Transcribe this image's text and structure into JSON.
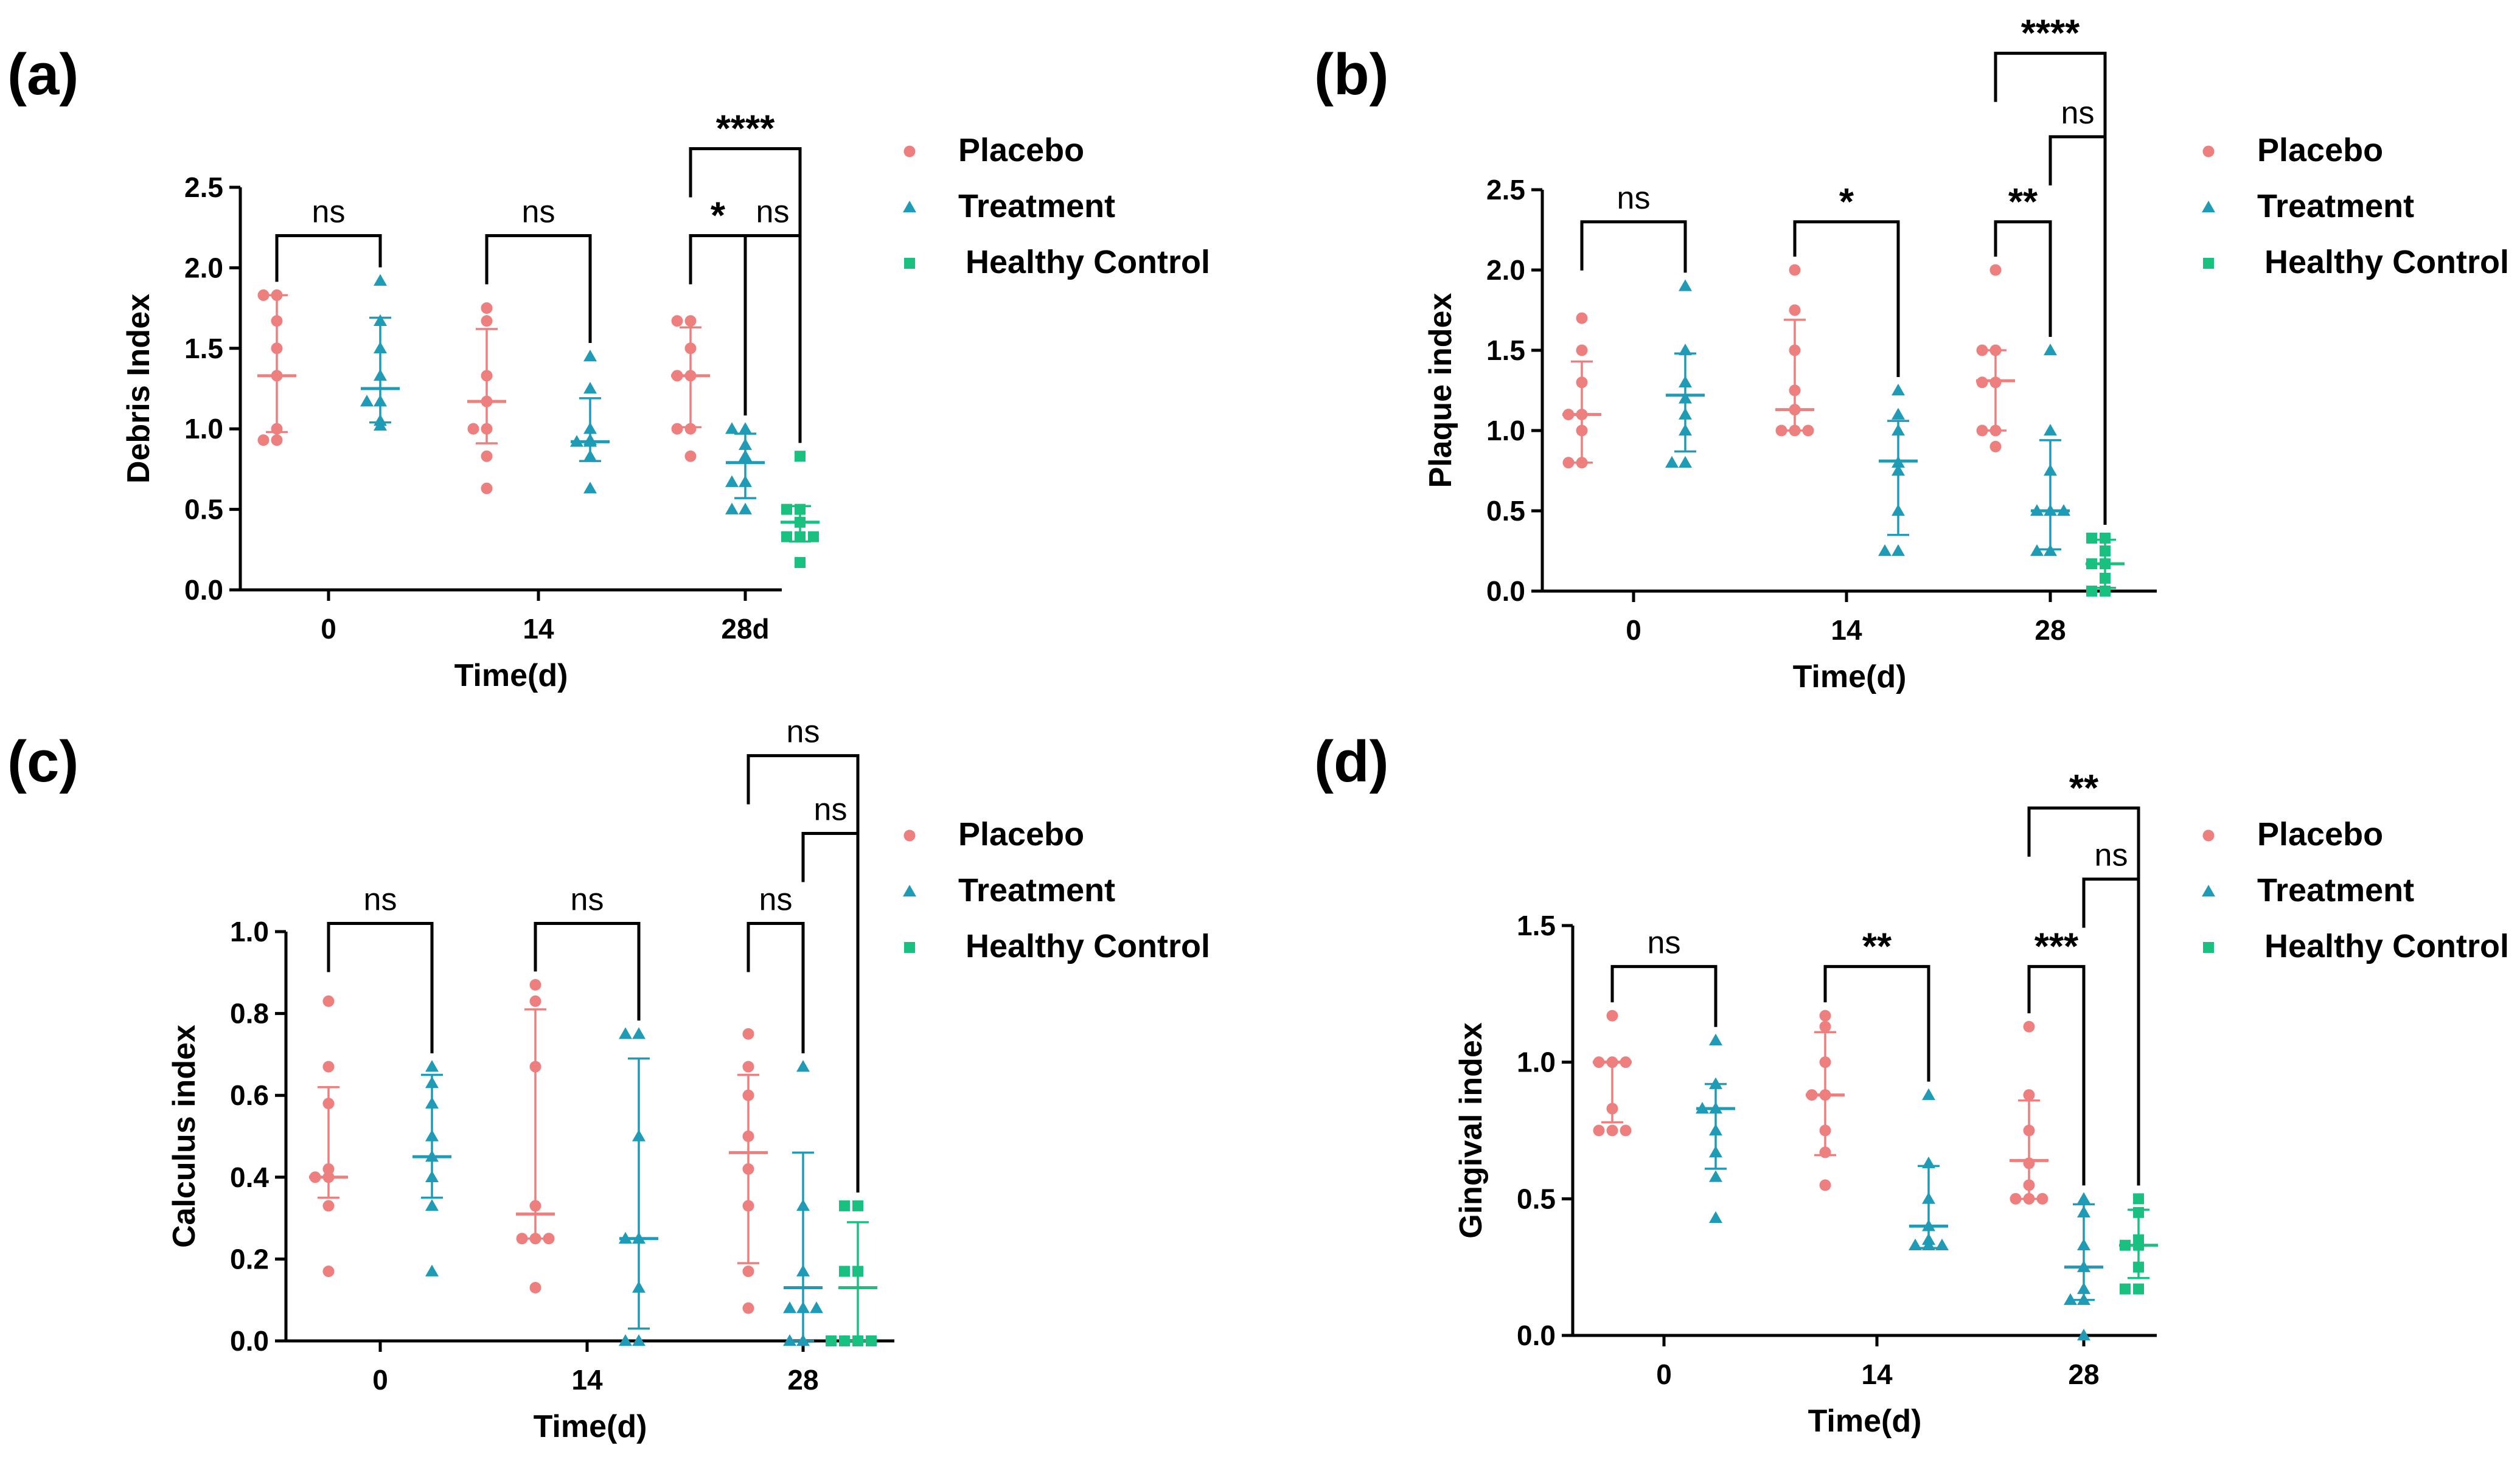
{
  "colors": {
    "Placebo": "#ee7f7f",
    "Treatment": "#1f9bb6",
    "Healthy Control": "#19c07f",
    "axis": "#000000"
  },
  "chart_data": [
    {
      "type": "scatter",
      "panel": "(a)",
      "ylabel": "Debris Index",
      "xlabel": "Time(d)",
      "ylim": [
        0,
        2.5
      ],
      "yticks": [
        "0.0",
        "0.5",
        "1.0",
        "1.5",
        "2.0",
        "2.5"
      ],
      "categories": [
        "0",
        "14",
        "28d"
      ],
      "legend": [
        "Placebo",
        "Treatment",
        "Healthy Control"
      ],
      "groups": [
        {
          "time": "0",
          "series": "Placebo",
          "points": [
            1.83,
            1.83,
            1.67,
            1.5,
            1.33,
            1.0,
            0.93,
            0.93
          ],
          "mean": 1.33,
          "err": [
            0.98,
            1.83
          ]
        },
        {
          "time": "0",
          "series": "Treatment",
          "points": [
            1.92,
            1.67,
            1.5,
            1.33,
            1.17,
            1.17,
            1.05,
            1.02
          ],
          "mean": 1.25,
          "err": [
            1.04,
            1.69
          ]
        },
        {
          "time": "14",
          "series": "Placebo",
          "points": [
            1.75,
            1.67,
            1.33,
            1.17,
            1.0,
            1.0,
            0.83,
            0.63
          ],
          "mean": 1.17,
          "err": [
            0.91,
            1.62
          ]
        },
        {
          "time": "14",
          "series": "Treatment",
          "points": [
            1.45,
            1.25,
            1.0,
            0.93,
            0.92,
            0.92,
            0.83,
            0.63
          ],
          "mean": 0.92,
          "err": [
            0.8,
            1.19
          ]
        },
        {
          "time": "28d",
          "series": "Placebo",
          "points": [
            1.67,
            1.67,
            1.5,
            1.33,
            1.33,
            1.0,
            1.0,
            0.83
          ],
          "mean": 1.33,
          "err": [
            1.01,
            1.63
          ]
        },
        {
          "time": "28d",
          "series": "Treatment",
          "points": [
            1.0,
            1.0,
            0.9,
            0.83,
            0.67,
            0.67,
            0.5,
            0.5
          ],
          "mean": 0.79,
          "err": [
            0.57,
            0.97
          ]
        },
        {
          "time": "28d",
          "series": "Healthy Control",
          "points": [
            0.83,
            0.5,
            0.5,
            0.42,
            0.33,
            0.33,
            0.33,
            0.17
          ],
          "mean": 0.42,
          "err": [
            0.3,
            0.52
          ]
        }
      ],
      "comparisons": [
        {
          "time": "0",
          "from": "Placebo",
          "to": "Treatment",
          "label": "ns",
          "level": 2.2
        },
        {
          "time": "14",
          "from": "Placebo",
          "to": "Treatment",
          "label": "ns",
          "level": 2.2
        },
        {
          "time": "28d",
          "from": "Placebo",
          "to": "Treatment",
          "label": "*",
          "level": 2.2
        },
        {
          "time": "28d",
          "from": "Treatment",
          "to": "Healthy Control",
          "label": "ns",
          "level": 2.2
        },
        {
          "time": "28d",
          "from": "Placebo",
          "to": "Healthy Control",
          "label": "****",
          "level": 2.74
        }
      ]
    },
    {
      "type": "scatter",
      "panel": "(b)",
      "ylabel": "Plaque index",
      "xlabel": "Time(d)",
      "ylim": [
        0,
        2.5
      ],
      "yticks": [
        "0.0",
        "0.5",
        "1.0",
        "1.5",
        "2.0",
        "2.5"
      ],
      "categories": [
        "0",
        "14",
        "28"
      ],
      "legend": [
        "Placebo",
        "Treatment",
        "Healthy Control"
      ],
      "groups": [
        {
          "time": "0",
          "series": "Placebo",
          "points": [
            1.7,
            1.5,
            1.3,
            1.1,
            1.1,
            1.0,
            0.8,
            0.8
          ],
          "mean": 1.1,
          "err": [
            0.8,
            1.43
          ]
        },
        {
          "time": "0",
          "series": "Treatment",
          "points": [
            1.9,
            1.5,
            1.3,
            1.2,
            1.1,
            1.0,
            0.8,
            0.8
          ],
          "mean": 1.22,
          "err": [
            0.87,
            1.48
          ]
        },
        {
          "time": "14",
          "series": "Placebo",
          "points": [
            2.0,
            1.75,
            1.5,
            1.25,
            1.13,
            1.0,
            1.0,
            1.0
          ],
          "mean": 1.13,
          "err": [
            1.0,
            1.69
          ]
        },
        {
          "time": "14",
          "series": "Treatment",
          "points": [
            1.25,
            1.1,
            1.0,
            0.8,
            0.75,
            0.5,
            0.25,
            0.25
          ],
          "mean": 0.81,
          "err": [
            0.35,
            1.06
          ]
        },
        {
          "time": "28",
          "series": "Placebo",
          "points": [
            2.0,
            1.5,
            1.5,
            1.3,
            1.3,
            1.0,
            1.0,
            0.9
          ],
          "mean": 1.31,
          "err": [
            1.0,
            1.5
          ]
        },
        {
          "time": "28",
          "series": "Treatment",
          "points": [
            1.5,
            1.0,
            0.75,
            0.5,
            0.5,
            0.5,
            0.25,
            0.25
          ],
          "mean": 0.5,
          "err": [
            0.26,
            0.94
          ]
        },
        {
          "time": "28",
          "series": "Healthy Control",
          "points": [
            0.33,
            0.33,
            0.25,
            0.17,
            0.17,
            0.08,
            0.0,
            0.0
          ],
          "mean": 0.17,
          "err": [
            0.02,
            0.32
          ]
        }
      ],
      "comparisons": [
        {
          "time": "0",
          "from": "Placebo",
          "to": "Treatment",
          "label": "ns",
          "level": 2.3
        },
        {
          "time": "14",
          "from": "Placebo",
          "to": "Treatment",
          "label": "*",
          "level": 2.3
        },
        {
          "time": "28",
          "from": "Placebo",
          "to": "Treatment",
          "label": "**",
          "level": 2.3
        },
        {
          "time": "28",
          "from": "Treatment",
          "to": "Healthy Control",
          "label": "ns",
          "level": 2.83
        },
        {
          "time": "28",
          "from": "Placebo",
          "to": "Healthy Control",
          "label": "****",
          "level": 3.35
        }
      ]
    },
    {
      "type": "scatter",
      "panel": "(c)",
      "ylabel": "Calculus index",
      "xlabel": "Time(d)",
      "ylim": [
        0,
        1.0
      ],
      "yticks": [
        "0.0",
        "0.2",
        "0.4",
        "0.6",
        "0.8",
        "1.0"
      ],
      "categories": [
        "0",
        "14",
        "28"
      ],
      "legend": [
        "Placebo",
        "Treatment",
        "Healthy Control"
      ],
      "groups": [
        {
          "time": "0",
          "series": "Placebo",
          "points": [
            0.83,
            0.67,
            0.58,
            0.42,
            0.4,
            0.4,
            0.33,
            0.17
          ],
          "mean": 0.4,
          "err": [
            0.35,
            0.62
          ]
        },
        {
          "time": "0",
          "series": "Treatment",
          "points": [
            0.67,
            0.63,
            0.58,
            0.5,
            0.45,
            0.4,
            0.33,
            0.17
          ],
          "mean": 0.45,
          "err": [
            0.35,
            0.65
          ]
        },
        {
          "time": "14",
          "series": "Placebo",
          "points": [
            0.87,
            0.83,
            0.67,
            0.33,
            0.25,
            0.25,
            0.25,
            0.13
          ],
          "mean": 0.31,
          "err": [
            0.25,
            0.81
          ]
        },
        {
          "time": "14",
          "series": "Treatment",
          "points": [
            0.75,
            0.75,
            0.5,
            0.25,
            0.25,
            0.13,
            0.0,
            0.0
          ],
          "mean": 0.25,
          "err": [
            0.03,
            0.69
          ]
        },
        {
          "time": "28",
          "series": "Placebo",
          "points": [
            0.75,
            0.67,
            0.6,
            0.5,
            0.42,
            0.33,
            0.17,
            0.08
          ],
          "mean": 0.46,
          "err": [
            0.19,
            0.65
          ]
        },
        {
          "time": "28",
          "series": "Treatment",
          "points": [
            0.67,
            0.33,
            0.17,
            0.08,
            0.08,
            0.08,
            0.0,
            0.0
          ],
          "mean": 0.13,
          "err": [
            0.0,
            0.46
          ]
        },
        {
          "time": "28",
          "series": "Healthy Control",
          "points": [
            0.33,
            0.33,
            0.17,
            0.17,
            0.0,
            0.0,
            0.0,
            0.0
          ],
          "mean": 0.13,
          "err": [
            0.0,
            0.29
          ]
        }
      ],
      "comparisons": [
        {
          "time": "0",
          "from": "Placebo",
          "to": "Treatment",
          "label": "ns",
          "level": 1.02
        },
        {
          "time": "14",
          "from": "Placebo",
          "to": "Treatment",
          "label": "ns",
          "level": 1.02
        },
        {
          "time": "28",
          "from": "Placebo",
          "to": "Treatment",
          "label": "ns",
          "level": 1.02
        },
        {
          "time": "28",
          "from": "Treatment",
          "to": "Healthy Control",
          "label": "ns",
          "level": 1.24
        },
        {
          "time": "28",
          "from": "Placebo",
          "to": "Healthy Control",
          "label": "ns",
          "level": 1.43
        }
      ]
    },
    {
      "type": "scatter",
      "panel": "(d)",
      "ylabel": "Gingival index",
      "xlabel": "Time(d)",
      "ylim": [
        0,
        1.5
      ],
      "yticks": [
        "0.0",
        "0.5",
        "1.0",
        "1.5"
      ],
      "categories": [
        "0",
        "14",
        "28"
      ],
      "legend": [
        "Placebo",
        "Treatment",
        "Healthy Control"
      ],
      "groups": [
        {
          "time": "0",
          "series": "Placebo",
          "points": [
            1.17,
            1.0,
            1.0,
            1.0,
            0.83,
            0.75,
            0.75,
            0.75
          ],
          "mean": 1.0,
          "err": [
            0.78,
            1.0
          ]
        },
        {
          "time": "0",
          "series": "Treatment",
          "points": [
            1.08,
            0.92,
            0.83,
            0.83,
            0.75,
            0.67,
            0.58,
            0.43
          ],
          "mean": 0.83,
          "err": [
            0.61,
            0.92
          ]
        },
        {
          "time": "14",
          "series": "Placebo",
          "points": [
            1.17,
            1.13,
            1.0,
            0.88,
            0.88,
            0.75,
            0.67,
            0.55
          ],
          "mean": 0.88,
          "err": [
            0.66,
            1.11
          ]
        },
        {
          "time": "14",
          "series": "Treatment",
          "points": [
            0.88,
            0.63,
            0.5,
            0.4,
            0.35,
            0.33,
            0.33,
            0.33
          ],
          "mean": 0.4,
          "err": [
            0.32,
            0.62
          ]
        },
        {
          "time": "28",
          "series": "Placebo",
          "points": [
            1.13,
            0.88,
            0.75,
            0.63,
            0.55,
            0.5,
            0.5,
            0.5
          ],
          "mean": 0.64,
          "err": [
            0.5,
            0.86
          ]
        },
        {
          "time": "28",
          "series": "Treatment",
          "points": [
            0.5,
            0.45,
            0.33,
            0.25,
            0.17,
            0.13,
            0.13,
            0.0
          ],
          "mean": 0.25,
          "err": [
            0.13,
            0.48
          ]
        },
        {
          "time": "28",
          "series": "Healthy Control",
          "points": [
            0.5,
            0.45,
            0.35,
            0.33,
            0.33,
            0.25,
            0.17,
            0.17
          ],
          "mean": 0.33,
          "err": [
            0.21,
            0.46
          ]
        }
      ],
      "comparisons": [
        {
          "time": "0",
          "from": "Placebo",
          "to": "Treatment",
          "label": "ns",
          "level": 1.35
        },
        {
          "time": "14",
          "from": "Placebo",
          "to": "Treatment",
          "label": "**",
          "level": 1.35
        },
        {
          "time": "28",
          "from": "Placebo",
          "to": "Treatment",
          "label": "***",
          "level": 1.35
        },
        {
          "time": "28",
          "from": "Treatment",
          "to": "Healthy Control",
          "label": "ns",
          "level": 1.67
        },
        {
          "time": "28",
          "from": "Placebo",
          "to": "Healthy Control",
          "label": "**",
          "level": 1.93
        }
      ]
    }
  ]
}
